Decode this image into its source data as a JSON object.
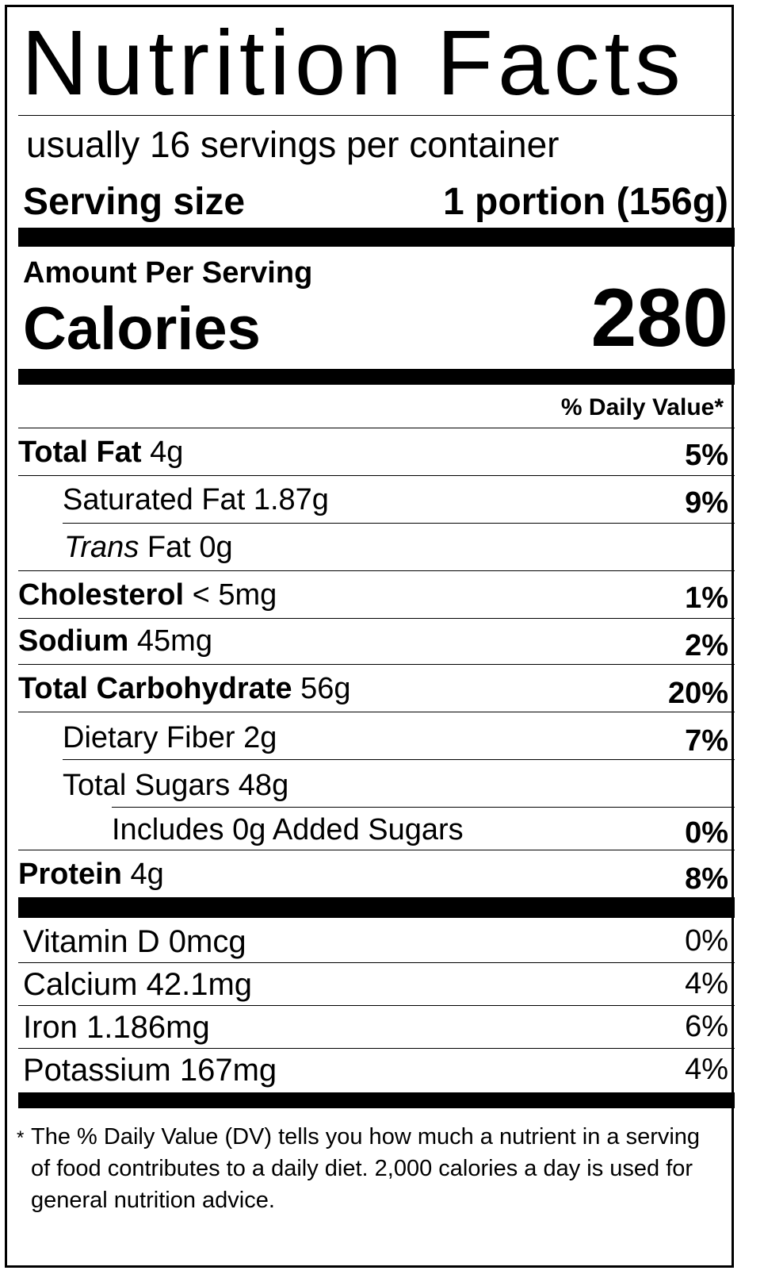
{
  "title": "Nutrition Facts",
  "servings_per_container": "usually 16 servings per container",
  "serving_size": {
    "label": "Serving size",
    "value": "1 portion (156g)"
  },
  "amount_per_serving": "Amount Per Serving",
  "calories": {
    "label": "Calories",
    "value": "280"
  },
  "daily_value_header": "% Daily Value*",
  "nutrients": {
    "total_fat": {
      "name": "Total Fat",
      "amount": "4g",
      "dv": "5%"
    },
    "saturated_fat": {
      "name": "Saturated Fat",
      "amount": "1.87g",
      "dv": "9%"
    },
    "trans_fat": {
      "name_italic": "Trans",
      "name": "Fat",
      "amount": "0g"
    },
    "cholesterol": {
      "name": "Cholesterol",
      "amount": "< 5mg",
      "dv": "1%"
    },
    "sodium": {
      "name": "Sodium",
      "amount": "45mg",
      "dv": "2%"
    },
    "total_carbohydrate": {
      "name": "Total Carbohydrate",
      "amount": "56g",
      "dv": "20%"
    },
    "dietary_fiber": {
      "name": "Dietary Fiber",
      "amount": "2g",
      "dv": "7%"
    },
    "total_sugars": {
      "name": "Total Sugars",
      "amount": "48g"
    },
    "added_sugars": {
      "text": "Includes 0g Added Sugars",
      "dv": "0%"
    },
    "protein": {
      "name": "Protein",
      "amount": "4g",
      "dv": "8%"
    }
  },
  "vitamins": [
    {
      "text": "Vitamin D 0mcg",
      "dv": "0%"
    },
    {
      "text": "Calcium 42.1mg",
      "dv": "4%"
    },
    {
      "text": "Iron 1.186mg",
      "dv": "6%"
    },
    {
      "text": "Potassium 167mg",
      "dv": "4%"
    }
  ],
  "footnote": {
    "star": "*",
    "text": "The % Daily Value (DV) tells you how much a nutrient in a serving of food contributes to a daily diet. 2,000 calories a day is used for general nutrition advice."
  }
}
